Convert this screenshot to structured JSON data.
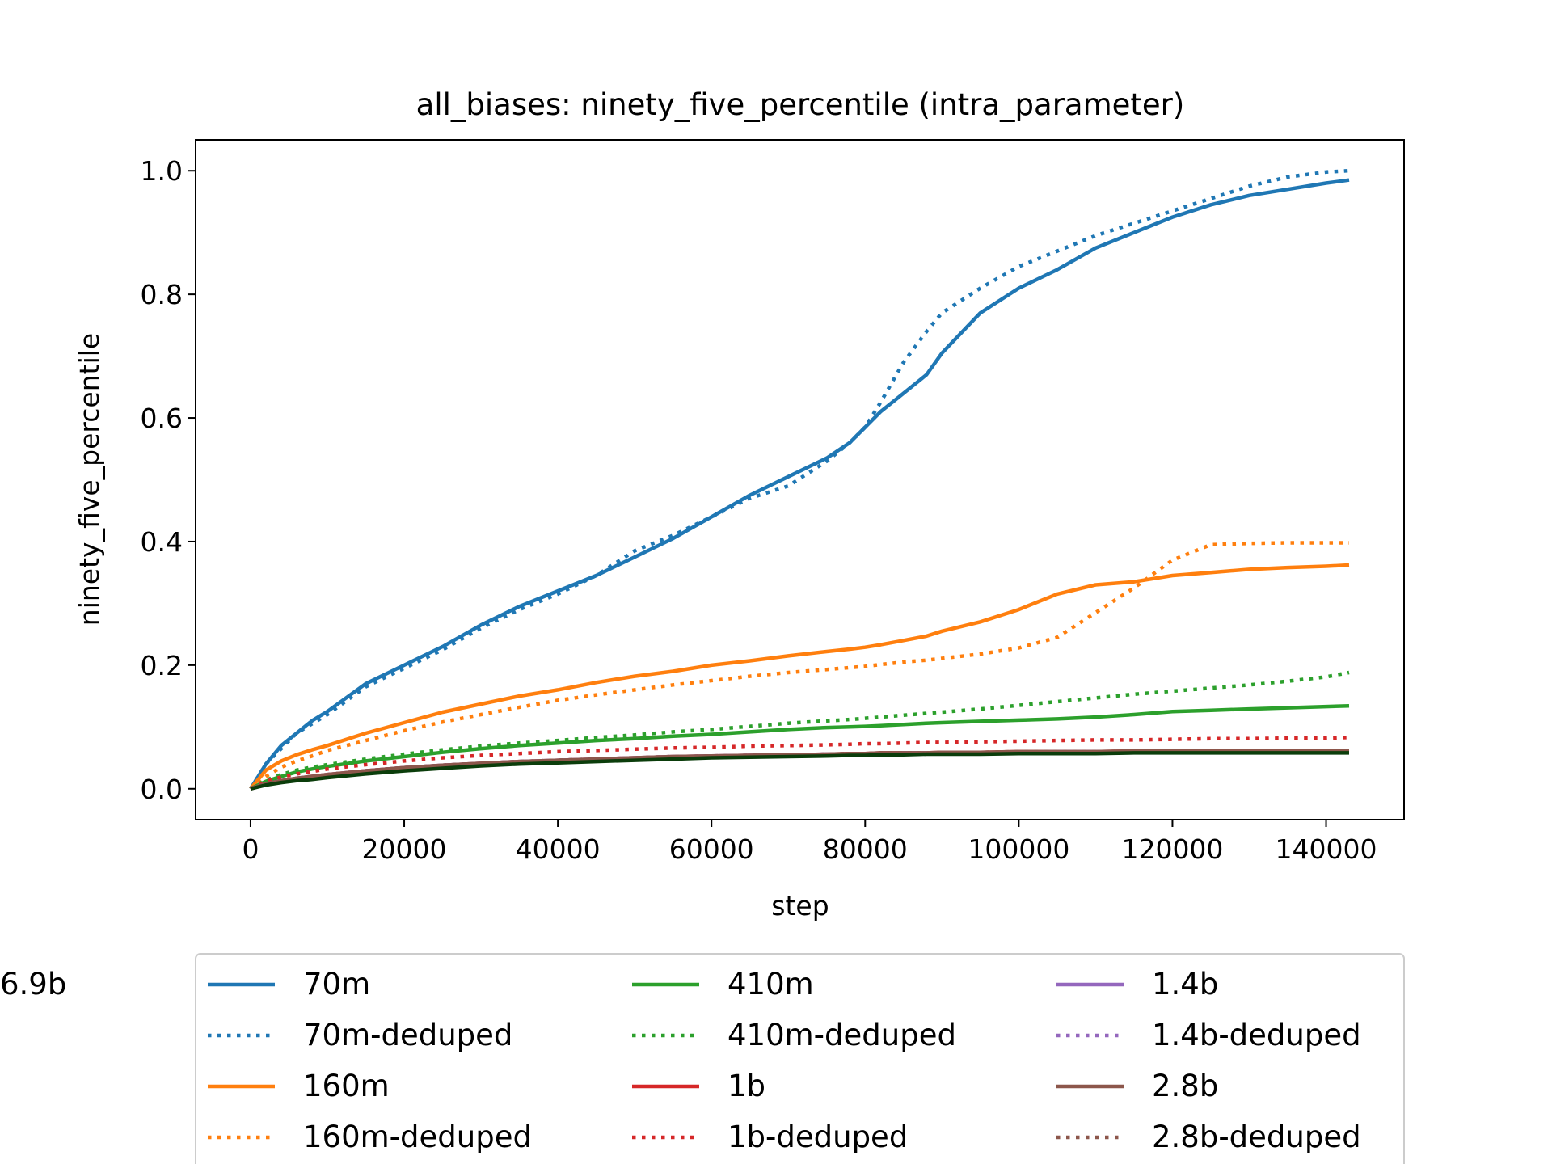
{
  "chart_data": {
    "type": "line",
    "title": "all_biases: ninety_five_percentile (intra_parameter)",
    "xlabel": "step",
    "ylabel": "ninety_five_percentile",
    "xlim": [
      -7150,
      150150
    ],
    "ylim": [
      -0.05,
      1.05
    ],
    "xticks": [
      0,
      20000,
      40000,
      60000,
      80000,
      100000,
      120000,
      140000
    ],
    "xtick_labels": [
      "0",
      "20000",
      "40000",
      "60000",
      "80000",
      "100000",
      "120000",
      "140000"
    ],
    "yticks": [
      0.0,
      0.2,
      0.4,
      0.6,
      0.8,
      1.0
    ],
    "ytick_labels": [
      "0.0",
      "0.2",
      "0.4",
      "0.6",
      "0.8",
      "1.0"
    ],
    "grid": false,
    "legend_position": "bottom, below plot, 3 columns",
    "x": [
      0,
      1000,
      2000,
      4000,
      6000,
      8000,
      10000,
      15000,
      20000,
      25000,
      30000,
      35000,
      40000,
      45000,
      50000,
      55000,
      60000,
      65000,
      70000,
      75000,
      78000,
      80000,
      82000,
      85000,
      88000,
      90000,
      95000,
      100000,
      105000,
      110000,
      115000,
      120000,
      125000,
      130000,
      135000,
      140000,
      143000
    ],
    "series": [
      {
        "name": "70m",
        "color": "#1f77b4",
        "style": "solid",
        "values": [
          0.0,
          0.02,
          0.04,
          0.07,
          0.09,
          0.11,
          0.125,
          0.17,
          0.2,
          0.23,
          0.265,
          0.295,
          0.32,
          0.345,
          0.375,
          0.405,
          0.44,
          0.475,
          0.505,
          0.535,
          0.56,
          0.585,
          0.61,
          0.64,
          0.67,
          0.705,
          0.77,
          0.81,
          0.84,
          0.875,
          0.9,
          0.925,
          0.945,
          0.96,
          0.97,
          0.98,
          0.985
        ]
      },
      {
        "name": "70m-deduped",
        "color": "#1f77b4",
        "style": "dotted",
        "values": [
          0.0,
          0.02,
          0.04,
          0.065,
          0.09,
          0.105,
          0.12,
          0.165,
          0.195,
          0.225,
          0.26,
          0.29,
          0.315,
          0.345,
          0.385,
          0.41,
          0.44,
          0.47,
          0.49,
          0.53,
          0.56,
          0.585,
          0.625,
          0.69,
          0.74,
          0.77,
          0.81,
          0.845,
          0.87,
          0.895,
          0.915,
          0.935,
          0.955,
          0.975,
          0.99,
          0.998,
          1.0
        ]
      },
      {
        "name": "160m",
        "color": "#ff7f0e",
        "style": "solid",
        "values": [
          0.0,
          0.015,
          0.03,
          0.045,
          0.055,
          0.063,
          0.07,
          0.09,
          0.107,
          0.124,
          0.137,
          0.15,
          0.16,
          0.172,
          0.182,
          0.19,
          0.2,
          0.207,
          0.215,
          0.222,
          0.226,
          0.229,
          0.233,
          0.24,
          0.247,
          0.255,
          0.27,
          0.29,
          0.315,
          0.33,
          0.335,
          0.345,
          0.35,
          0.355,
          0.358,
          0.36,
          0.362
        ]
      },
      {
        "name": "160m-deduped",
        "color": "#ff7f0e",
        "style": "dotted",
        "values": [
          0.0,
          0.01,
          0.02,
          0.035,
          0.045,
          0.053,
          0.062,
          0.078,
          0.094,
          0.108,
          0.12,
          0.132,
          0.143,
          0.152,
          0.16,
          0.168,
          0.175,
          0.182,
          0.188,
          0.193,
          0.196,
          0.198,
          0.201,
          0.205,
          0.208,
          0.211,
          0.218,
          0.228,
          0.245,
          0.285,
          0.325,
          0.37,
          0.395,
          0.397,
          0.398,
          0.398,
          0.398
        ]
      },
      {
        "name": "410m",
        "color": "#2ca02c",
        "style": "solid",
        "values": [
          0.0,
          0.006,
          0.012,
          0.02,
          0.027,
          0.032,
          0.036,
          0.045,
          0.052,
          0.059,
          0.065,
          0.07,
          0.074,
          0.078,
          0.081,
          0.085,
          0.088,
          0.092,
          0.096,
          0.099,
          0.1,
          0.101,
          0.102,
          0.104,
          0.106,
          0.107,
          0.109,
          0.111,
          0.113,
          0.116,
          0.12,
          0.125,
          0.127,
          0.129,
          0.131,
          0.133,
          0.134
        ]
      },
      {
        "name": "410m-deduped",
        "color": "#2ca02c",
        "style": "dotted",
        "values": [
          0.0,
          0.007,
          0.014,
          0.023,
          0.03,
          0.035,
          0.039,
          0.048,
          0.056,
          0.063,
          0.069,
          0.074,
          0.078,
          0.083,
          0.087,
          0.092,
          0.096,
          0.101,
          0.106,
          0.11,
          0.112,
          0.114,
          0.116,
          0.119,
          0.122,
          0.124,
          0.129,
          0.135,
          0.141,
          0.147,
          0.153,
          0.158,
          0.163,
          0.168,
          0.174,
          0.181,
          0.188
        ]
      },
      {
        "name": "1b",
        "color": "#d62728",
        "style": "solid",
        "values": [
          0.0,
          0.004,
          0.008,
          0.013,
          0.017,
          0.02,
          0.023,
          0.029,
          0.034,
          0.038,
          0.041,
          0.044,
          0.046,
          0.048,
          0.05,
          0.052,
          0.053,
          0.054,
          0.055,
          0.056,
          0.057,
          0.057,
          0.058,
          0.058,
          0.058,
          0.059,
          0.059,
          0.06,
          0.06,
          0.06,
          0.061,
          0.061,
          0.061,
          0.061,
          0.062,
          0.062,
          0.062
        ]
      },
      {
        "name": "1b-deduped",
        "color": "#d62728",
        "style": "dotted",
        "values": [
          0.0,
          0.006,
          0.012,
          0.019,
          0.024,
          0.028,
          0.032,
          0.039,
          0.045,
          0.05,
          0.054,
          0.057,
          0.06,
          0.062,
          0.064,
          0.066,
          0.067,
          0.069,
          0.07,
          0.071,
          0.072,
          0.073,
          0.073,
          0.074,
          0.075,
          0.075,
          0.076,
          0.077,
          0.078,
          0.079,
          0.079,
          0.08,
          0.081,
          0.081,
          0.082,
          0.082,
          0.083
        ]
      },
      {
        "name": "1.4b",
        "color": "#9467bd",
        "style": "solid",
        "values": [
          0.0,
          0.004,
          0.008,
          0.013,
          0.017,
          0.02,
          0.023,
          0.029,
          0.034,
          0.038,
          0.041,
          0.044,
          0.046,
          0.048,
          0.05,
          0.052,
          0.053,
          0.054,
          0.055,
          0.056,
          0.056,
          0.057,
          0.057,
          0.058,
          0.058,
          0.058,
          0.059,
          0.059,
          0.06,
          0.06,
          0.06,
          0.06,
          0.061,
          0.061,
          0.061,
          0.061,
          0.061
        ]
      },
      {
        "name": "1.4b-deduped",
        "color": "#9467bd",
        "style": "dotted",
        "values": [
          0.0,
          0.004,
          0.008,
          0.013,
          0.017,
          0.02,
          0.023,
          0.029,
          0.034,
          0.038,
          0.041,
          0.044,
          0.046,
          0.048,
          0.05,
          0.052,
          0.053,
          0.054,
          0.055,
          0.056,
          0.056,
          0.057,
          0.057,
          0.058,
          0.058,
          0.058,
          0.059,
          0.059,
          0.06,
          0.06,
          0.06,
          0.06,
          0.061,
          0.061,
          0.061,
          0.061,
          0.061
        ]
      },
      {
        "name": "2.8b",
        "color": "#8c564b",
        "style": "solid",
        "values": [
          0.0,
          0.004,
          0.008,
          0.013,
          0.017,
          0.02,
          0.023,
          0.029,
          0.034,
          0.038,
          0.041,
          0.044,
          0.046,
          0.048,
          0.05,
          0.052,
          0.053,
          0.054,
          0.055,
          0.056,
          0.057,
          0.057,
          0.058,
          0.058,
          0.058,
          0.059,
          0.059,
          0.06,
          0.06,
          0.06,
          0.061,
          0.061,
          0.061,
          0.061,
          0.062,
          0.062,
          0.062
        ]
      },
      {
        "name": "2.8b-deduped",
        "color": "#8c564b",
        "style": "dotted",
        "values": [
          0.0,
          0.004,
          0.008,
          0.013,
          0.017,
          0.02,
          0.023,
          0.029,
          0.034,
          0.038,
          0.041,
          0.044,
          0.046,
          0.048,
          0.05,
          0.052,
          0.053,
          0.054,
          0.055,
          0.056,
          0.057,
          0.057,
          0.058,
          0.058,
          0.058,
          0.059,
          0.059,
          0.06,
          0.06,
          0.06,
          0.061,
          0.061,
          0.061,
          0.061,
          0.062,
          0.062,
          0.062
        ]
      },
      {
        "name": "6.9b",
        "color": "#0b3d0b",
        "style": "solid",
        "values": [
          0.0,
          0.003,
          0.006,
          0.01,
          0.013,
          0.015,
          0.018,
          0.024,
          0.029,
          0.033,
          0.037,
          0.04,
          0.042,
          0.044,
          0.046,
          0.048,
          0.05,
          0.051,
          0.052,
          0.053,
          0.054,
          0.054,
          0.055,
          0.055,
          0.056,
          0.056,
          0.056,
          0.057,
          0.057,
          0.057,
          0.058,
          0.058,
          0.058,
          0.058,
          0.058,
          0.058,
          0.058
        ]
      }
    ]
  }
}
